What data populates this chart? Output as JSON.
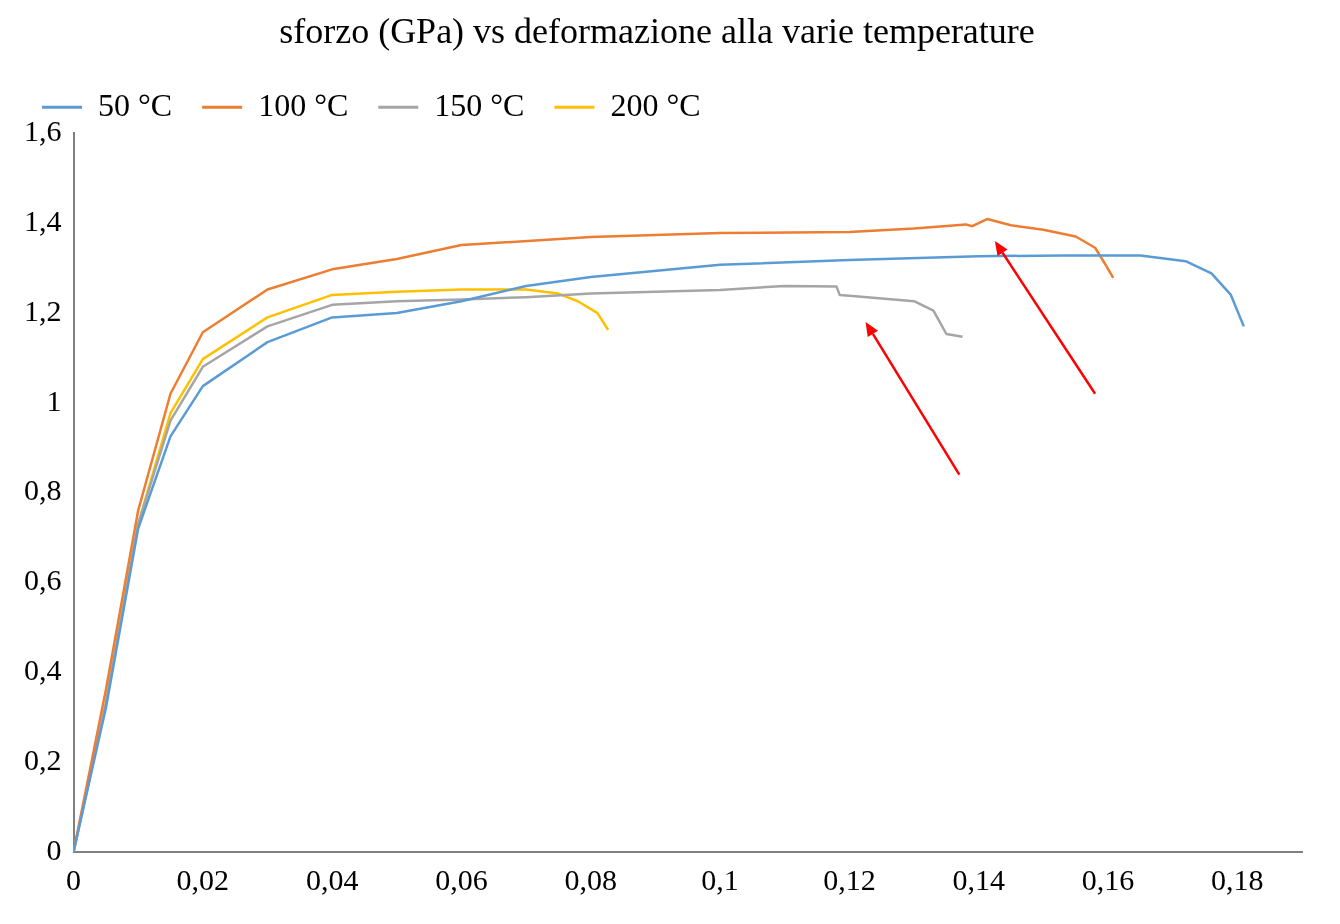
{
  "chart_data": {
    "type": "line",
    "title": "sforzo (GPa) vs deformazione alla varie temperature",
    "xlim": [
      0,
      0.19
    ],
    "ylim": [
      0,
      1.6
    ],
    "xticks": [
      {
        "value": 0,
        "label": "0"
      },
      {
        "value": 0.02,
        "label": "0,02"
      },
      {
        "value": 0.04,
        "label": "0,04"
      },
      {
        "value": 0.06,
        "label": "0,06"
      },
      {
        "value": 0.08,
        "label": "0,08"
      },
      {
        "value": 0.1,
        "label": "0,1"
      },
      {
        "value": 0.12,
        "label": "0,12"
      },
      {
        "value": 0.14,
        "label": "0,14"
      },
      {
        "value": 0.16,
        "label": "0,16"
      },
      {
        "value": 0.18,
        "label": "0,18"
      }
    ],
    "yticks": [
      {
        "value": 0,
        "label": "0"
      },
      {
        "value": 0.2,
        "label": "0,2"
      },
      {
        "value": 0.4,
        "label": "0,4"
      },
      {
        "value": 0.6,
        "label": "0,6"
      },
      {
        "value": 0.8,
        "label": "0,8"
      },
      {
        "value": 1,
        "label": "1"
      },
      {
        "value": 1.2,
        "label": "1,2"
      },
      {
        "value": 1.4,
        "label": "1,4"
      },
      {
        "value": 1.6,
        "label": "1,6"
      }
    ],
    "grid": false,
    "legend": "top left",
    "marker": "none",
    "line_style": "solid",
    "series": [
      {
        "name": "50 °C",
        "color": "#5b9bd5",
        "x": [
          0,
          0.005,
          0.01,
          0.015,
          0.02,
          0.03,
          0.04,
          0.05,
          0.06,
          0.07,
          0.08,
          0.1,
          0.12,
          0.14,
          0.153,
          0.165,
          0.172,
          0.176,
          0.179,
          0.181
        ],
        "values": [
          0,
          0.32,
          0.72,
          0.925,
          1.037,
          1.135,
          1.19,
          1.2,
          1.226,
          1.26,
          1.28,
          1.307,
          1.318,
          1.326,
          1.328,
          1.328,
          1.315,
          1.288,
          1.24,
          1.17
        ]
      },
      {
        "name": "100 °C",
        "color": "#ed7d31",
        "x": [
          0,
          0.005,
          0.01,
          0.015,
          0.02,
          0.03,
          0.04,
          0.05,
          0.06,
          0.08,
          0.1,
          0.12,
          0.13,
          0.138,
          0.139,
          0.1413,
          0.145,
          0.15,
          0.155,
          0.158,
          0.1595,
          0.1608
        ],
        "values": [
          0,
          0.36,
          0.76,
          1.02,
          1.157,
          1.252,
          1.297,
          1.32,
          1.351,
          1.369,
          1.378,
          1.38,
          1.388,
          1.397,
          1.393,
          1.409,
          1.395,
          1.385,
          1.37,
          1.345,
          1.31,
          1.278
        ]
      },
      {
        "name": "150 °C",
        "color": "#a5a5a5",
        "x": [
          0,
          0.005,
          0.01,
          0.015,
          0.02,
          0.03,
          0.04,
          0.05,
          0.06,
          0.07,
          0.08,
          0.1,
          0.11,
          0.118,
          0.1185,
          0.12,
          0.13,
          0.133,
          0.135,
          0.1375
        ],
        "values": [
          0,
          0.33,
          0.73,
          0.96,
          1.08,
          1.17,
          1.218,
          1.226,
          1.23,
          1.235,
          1.243,
          1.251,
          1.26,
          1.259,
          1.24,
          1.238,
          1.226,
          1.205,
          1.153,
          1.147
        ]
      },
      {
        "name": "200 °C",
        "color": "#ffc000",
        "x": [
          0,
          0.005,
          0.01,
          0.015,
          0.02,
          0.03,
          0.04,
          0.05,
          0.06,
          0.07,
          0.075,
          0.078,
          0.081,
          0.0827
        ],
        "values": [
          0,
          0.33,
          0.73,
          0.977,
          1.097,
          1.19,
          1.24,
          1.247,
          1.252,
          1.252,
          1.243,
          1.226,
          1.2,
          1.162
        ]
      }
    ]
  }
}
